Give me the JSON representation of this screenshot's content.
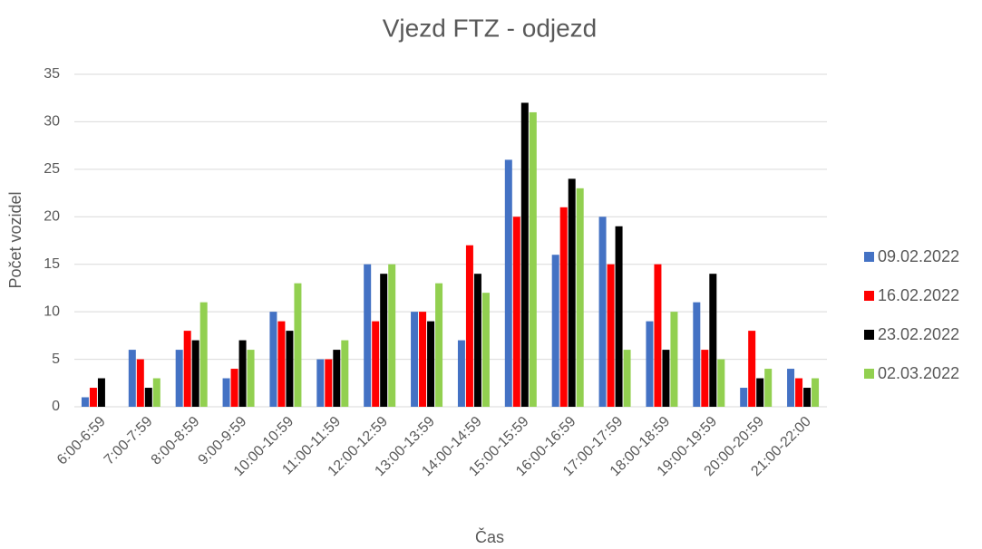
{
  "chart_data": {
    "type": "bar",
    "title": "Vjezd FTZ - odjezd",
    "x_label": "Čas",
    "y_label": "Počet vozidel",
    "categories": [
      "6:00-6:59",
      "7:00-7:59",
      "8:00-8:59",
      "9:00-9:59",
      "10:00-10:59",
      "11:00-11:59",
      "12:00-12:59",
      "13:00-13:59",
      "14:00-14:59",
      "15:00-15:59",
      "16:00-16:59",
      "17:00-17:59",
      "18:00-18:59",
      "19:00-19:59",
      "20:00-20:59",
      "21:00-22:00"
    ],
    "series": [
      {
        "name": "09.02.2022",
        "color": "#4472c4",
        "values": [
          1,
          6,
          6,
          3,
          10,
          5,
          15,
          10,
          7,
          26,
          16,
          20,
          9,
          11,
          2,
          4
        ]
      },
      {
        "name": "16.02.2022",
        "color": "#ff0000",
        "values": [
          2,
          5,
          8,
          4,
          9,
          5,
          9,
          10,
          17,
          20,
          21,
          15,
          15,
          6,
          8,
          3
        ]
      },
      {
        "name": "23.02.2022",
        "color": "#000000",
        "values": [
          3,
          2,
          7,
          7,
          8,
          6,
          14,
          9,
          14,
          32,
          24,
          19,
          6,
          14,
          3,
          2
        ]
      },
      {
        "name": "02.03.2022",
        "color": "#92d050",
        "values": [
          0,
          3,
          11,
          6,
          13,
          7,
          15,
          13,
          12,
          31,
          23,
          6,
          10,
          5,
          4,
          3
        ]
      }
    ],
    "ylim": [
      0,
      35
    ],
    "yticks": [
      0,
      5,
      10,
      15,
      20,
      25,
      30,
      35
    ],
    "grid": true,
    "legend": "right"
  }
}
